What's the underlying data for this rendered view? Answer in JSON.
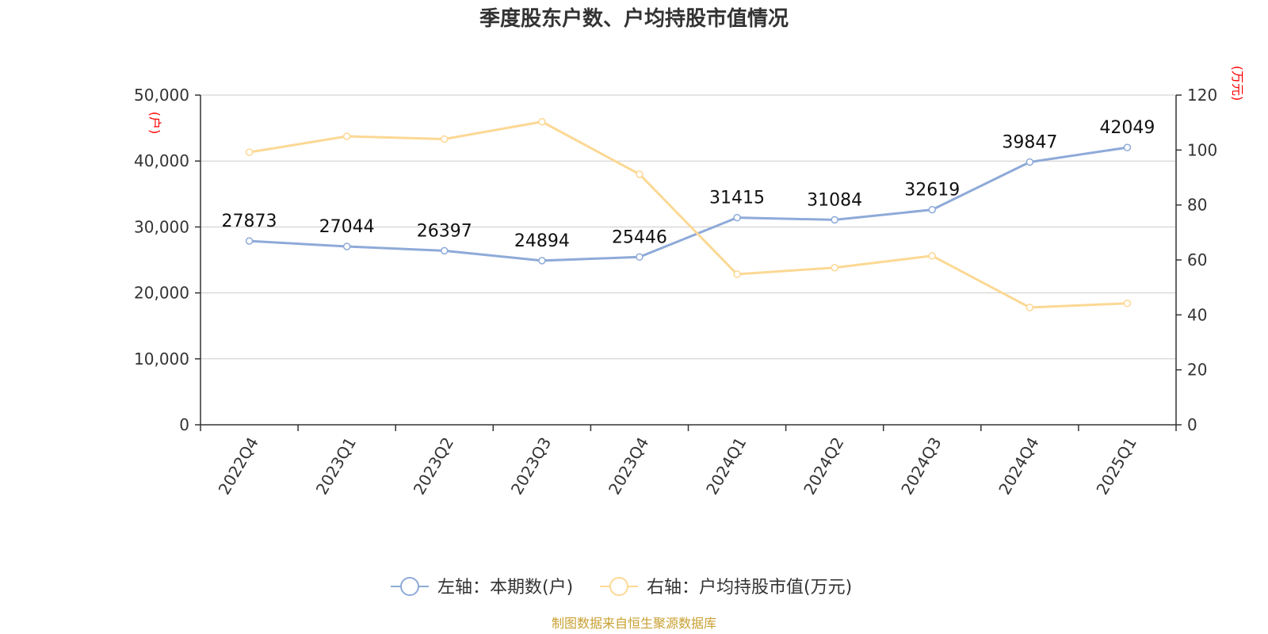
{
  "title": "季度股东户数、户均持股市值情况",
  "source": "制图数据来自恒生聚源数据库",
  "chart_data": {
    "type": "line",
    "categories": [
      "2022Q4",
      "2023Q1",
      "2023Q2",
      "2023Q3",
      "2023Q4",
      "2024Q1",
      "2024Q2",
      "2024Q3",
      "2024Q4",
      "2025Q1"
    ],
    "left_axis": {
      "unit": "(户)",
      "ylim": [
        0,
        50000
      ],
      "ticks": [
        "0",
        "10,000",
        "20,000",
        "30,000",
        "40,000",
        "50,000"
      ],
      "tick_values": [
        0,
        10000,
        20000,
        30000,
        40000,
        50000
      ]
    },
    "right_axis": {
      "unit": "(万元)",
      "ylim": [
        0,
        120
      ],
      "ticks": [
        "0",
        "20",
        "40",
        "60",
        "80",
        "100",
        "120"
      ],
      "tick_values": [
        0,
        20,
        40,
        60,
        80,
        100,
        120
      ]
    },
    "grid": true,
    "legend_position": "bottom",
    "series": [
      {
        "name": "左轴：本期数(户)",
        "axis": "left",
        "color": "#8eaad8",
        "values": [
          27873,
          27044,
          26397,
          24894,
          25446,
          31415,
          31084,
          32619,
          39847,
          42049
        ],
        "labels": [
          "27873",
          "27044",
          "26397",
          "24894",
          "25446",
          "31415",
          "31084",
          "32619",
          "39847",
          "42049"
        ]
      },
      {
        "name": "右轴：户均持股市值(万元)",
        "axis": "right",
        "color": "#fcd894",
        "values": [
          99.2,
          105.0,
          104.0,
          110.3,
          91.2,
          54.8,
          57.2,
          61.5,
          42.7,
          44.2
        ]
      }
    ]
  }
}
